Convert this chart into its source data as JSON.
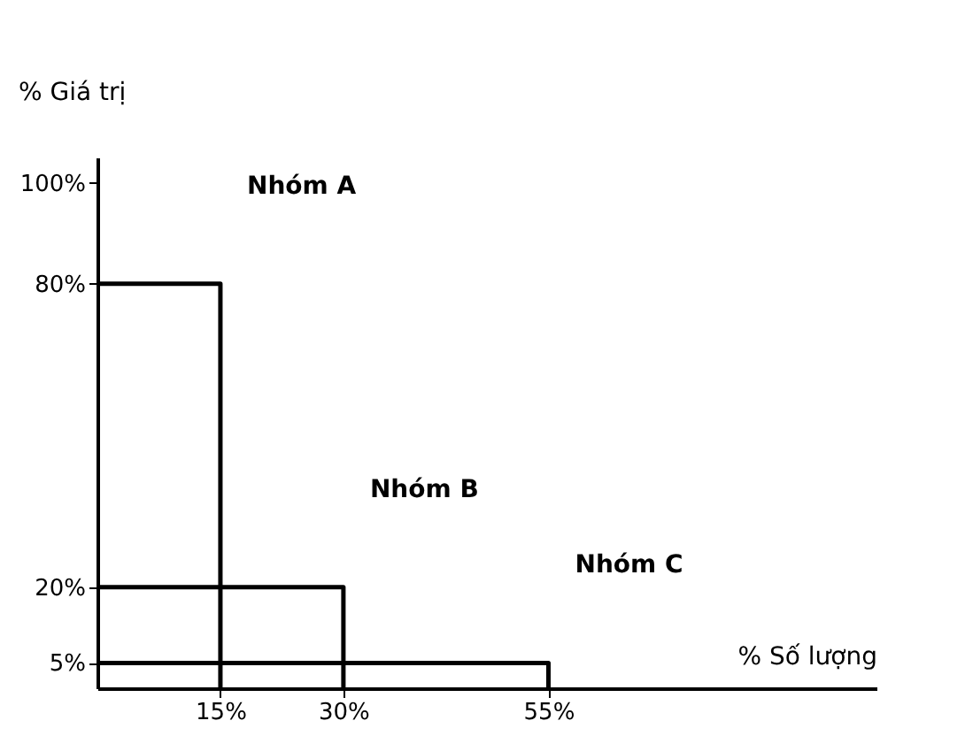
{
  "chart_data": {
    "type": "line",
    "xlabel": "% Số lượng",
    "ylabel": "% Giá trị",
    "series": [
      {
        "name": "Nhóm A",
        "color": "#000000",
        "x": [
          0,
          15,
          15
        ],
        "values": [
          80,
          80,
          0
        ]
      },
      {
        "name": "Nhóm B",
        "color": "#000000",
        "x": [
          0,
          30,
          30
        ],
        "values": [
          20,
          20,
          0
        ]
      },
      {
        "name": "Nhóm C",
        "color": "#000000",
        "x": [
          0,
          55,
          55
        ],
        "values": [
          5,
          5,
          0
        ]
      }
    ],
    "xlim": [
      0,
      95
    ],
    "ylim": [
      0,
      105
    ],
    "xticks": [
      {
        "value": 15,
        "label": "15%"
      },
      {
        "value": 30,
        "label": "30%"
      },
      {
        "value": 55,
        "label": "55%"
      }
    ],
    "yticks": [
      {
        "value": 5,
        "label": "5%"
      },
      {
        "value": 20,
        "label": "20%"
      },
      {
        "value": 80,
        "label": "80%"
      },
      {
        "value": 100,
        "label": "100%"
      }
    ],
    "marker": "none",
    "line_style": "solid"
  }
}
